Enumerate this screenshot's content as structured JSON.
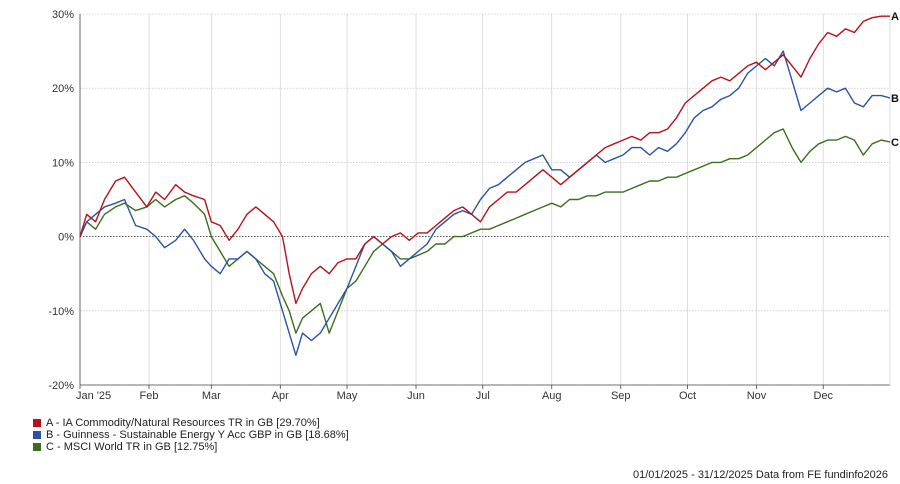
{
  "chart_data": {
    "type": "line",
    "x_tick_labels": [
      "Jan '25",
      "Feb",
      "Mar",
      "Apr",
      "May",
      "Jun",
      "Jul",
      "Aug",
      "Sep",
      "Oct",
      "Nov",
      "Dec"
    ],
    "x_tick_dates": [
      "2025-01-01",
      "2025-02-01",
      "2025-03-01",
      "2025-04-01",
      "2025-05-01",
      "2025-06-01",
      "2025-07-01",
      "2025-08-01",
      "2025-09-01",
      "2025-10-01",
      "2025-11-01",
      "2025-12-01"
    ],
    "x_range": [
      "2025-01-01",
      "2025-12-31"
    ],
    "y_tick_labels": [
      "30%",
      "20%",
      "10%",
      "0%",
      "-10%",
      "-20%"
    ],
    "y_ticks": [
      30,
      20,
      10,
      0,
      -10,
      -20
    ],
    "ylim": [
      -20,
      30
    ],
    "grid": true,
    "series": [
      {
        "name": "A - IA Commodity/Natural Resources TR in GB [29.70%]",
        "end_label": "A",
        "color": "#b5121b",
        "points": [
          [
            "2025-01-01",
            0
          ],
          [
            "2025-01-04",
            3
          ],
          [
            "2025-01-08",
            2
          ],
          [
            "2025-01-12",
            5
          ],
          [
            "2025-01-17",
            7.5
          ],
          [
            "2025-01-21",
            8
          ],
          [
            "2025-01-26",
            6
          ],
          [
            "2025-01-31",
            4
          ],
          [
            "2025-02-04",
            6
          ],
          [
            "2025-02-08",
            5
          ],
          [
            "2025-02-13",
            7
          ],
          [
            "2025-02-17",
            6
          ],
          [
            "2025-02-21",
            5.5
          ],
          [
            "2025-02-26",
            5
          ],
          [
            "2025-03-01",
            2
          ],
          [
            "2025-03-05",
            1.5
          ],
          [
            "2025-03-09",
            -0.5
          ],
          [
            "2025-03-13",
            1
          ],
          [
            "2025-03-17",
            3
          ],
          [
            "2025-03-21",
            4
          ],
          [
            "2025-03-25",
            3
          ],
          [
            "2025-03-29",
            2
          ],
          [
            "2025-04-02",
            0
          ],
          [
            "2025-04-05",
            -5
          ],
          [
            "2025-04-08",
            -9
          ],
          [
            "2025-04-11",
            -7
          ],
          [
            "2025-04-15",
            -5
          ],
          [
            "2025-04-19",
            -4
          ],
          [
            "2025-04-23",
            -5
          ],
          [
            "2025-04-27",
            -3.5
          ],
          [
            "2025-05-01",
            -3
          ],
          [
            "2025-05-05",
            -3
          ],
          [
            "2025-05-09",
            -1
          ],
          [
            "2025-05-13",
            0
          ],
          [
            "2025-05-17",
            -1
          ],
          [
            "2025-05-21",
            0
          ],
          [
            "2025-05-25",
            0.5
          ],
          [
            "2025-05-29",
            -0.5
          ],
          [
            "2025-06-02",
            0.5
          ],
          [
            "2025-06-06",
            0.5
          ],
          [
            "2025-06-10",
            1.5
          ],
          [
            "2025-06-14",
            2.5
          ],
          [
            "2025-06-18",
            3.5
          ],
          [
            "2025-06-22",
            4
          ],
          [
            "2025-06-26",
            3
          ],
          [
            "2025-06-30",
            2
          ],
          [
            "2025-07-04",
            4
          ],
          [
            "2025-07-08",
            5
          ],
          [
            "2025-07-12",
            6
          ],
          [
            "2025-07-16",
            6
          ],
          [
            "2025-07-20",
            7
          ],
          [
            "2025-07-24",
            8
          ],
          [
            "2025-07-28",
            9
          ],
          [
            "2025-08-01",
            8
          ],
          [
            "2025-08-05",
            7
          ],
          [
            "2025-08-09",
            8
          ],
          [
            "2025-08-13",
            9
          ],
          [
            "2025-08-17",
            10
          ],
          [
            "2025-08-21",
            11
          ],
          [
            "2025-08-25",
            12
          ],
          [
            "2025-08-29",
            12.5
          ],
          [
            "2025-09-02",
            13
          ],
          [
            "2025-09-06",
            13.5
          ],
          [
            "2025-09-10",
            13
          ],
          [
            "2025-09-14",
            14
          ],
          [
            "2025-09-18",
            14
          ],
          [
            "2025-09-22",
            14.5
          ],
          [
            "2025-09-26",
            16
          ],
          [
            "2025-09-30",
            18
          ],
          [
            "2025-10-04",
            19
          ],
          [
            "2025-10-08",
            20
          ],
          [
            "2025-10-12",
            21
          ],
          [
            "2025-10-16",
            21.5
          ],
          [
            "2025-10-20",
            21
          ],
          [
            "2025-10-24",
            22
          ],
          [
            "2025-10-28",
            23
          ],
          [
            "2025-11-01",
            23.5
          ],
          [
            "2025-11-05",
            22.5
          ],
          [
            "2025-11-09",
            23.5
          ],
          [
            "2025-11-13",
            24.5
          ],
          [
            "2025-11-17",
            23
          ],
          [
            "2025-11-21",
            21.5
          ],
          [
            "2025-11-25",
            24
          ],
          [
            "2025-11-29",
            26
          ],
          [
            "2025-12-03",
            27.5
          ],
          [
            "2025-12-07",
            27
          ],
          [
            "2025-12-11",
            28
          ],
          [
            "2025-12-15",
            27.5
          ],
          [
            "2025-12-19",
            29
          ],
          [
            "2025-12-23",
            29.5
          ],
          [
            "2025-12-27",
            29.7
          ],
          [
            "2025-12-31",
            29.7
          ]
        ]
      },
      {
        "name": "B - Guinness - Sustainable Energy Y Acc GBP in GB [18.68%]",
        "end_label": "B",
        "color": "#2a54a3",
        "points": [
          [
            "2025-01-01",
            0
          ],
          [
            "2025-01-04",
            2
          ],
          [
            "2025-01-08",
            3
          ],
          [
            "2025-01-12",
            4
          ],
          [
            "2025-01-17",
            4.5
          ],
          [
            "2025-01-21",
            5
          ],
          [
            "2025-01-26",
            1.5
          ],
          [
            "2025-01-31",
            1
          ],
          [
            "2025-02-04",
            0
          ],
          [
            "2025-02-08",
            -1.5
          ],
          [
            "2025-02-13",
            -0.5
          ],
          [
            "2025-02-17",
            1
          ],
          [
            "2025-02-21",
            -0.5
          ],
          [
            "2025-02-26",
            -3
          ],
          [
            "2025-03-01",
            -4
          ],
          [
            "2025-03-05",
            -5
          ],
          [
            "2025-03-09",
            -3
          ],
          [
            "2025-03-13",
            -3
          ],
          [
            "2025-03-17",
            -2
          ],
          [
            "2025-03-21",
            -3
          ],
          [
            "2025-03-25",
            -5
          ],
          [
            "2025-03-29",
            -6
          ],
          [
            "2025-04-02",
            -10
          ],
          [
            "2025-04-05",
            -13
          ],
          [
            "2025-04-08",
            -16
          ],
          [
            "2025-04-11",
            -13
          ],
          [
            "2025-04-15",
            -14
          ],
          [
            "2025-04-19",
            -13
          ],
          [
            "2025-04-23",
            -11
          ],
          [
            "2025-04-27",
            -9
          ],
          [
            "2025-05-01",
            -7
          ],
          [
            "2025-05-05",
            -4
          ],
          [
            "2025-05-09",
            -1
          ],
          [
            "2025-05-13",
            0
          ],
          [
            "2025-05-17",
            -1
          ],
          [
            "2025-05-21",
            -2
          ],
          [
            "2025-05-25",
            -4
          ],
          [
            "2025-05-29",
            -3
          ],
          [
            "2025-06-02",
            -2
          ],
          [
            "2025-06-06",
            -1
          ],
          [
            "2025-06-10",
            1
          ],
          [
            "2025-06-14",
            2
          ],
          [
            "2025-06-18",
            3
          ],
          [
            "2025-06-22",
            3.5
          ],
          [
            "2025-06-26",
            3
          ],
          [
            "2025-06-30",
            5
          ],
          [
            "2025-07-04",
            6.5
          ],
          [
            "2025-07-08",
            7
          ],
          [
            "2025-07-12",
            8
          ],
          [
            "2025-07-16",
            9
          ],
          [
            "2025-07-20",
            10
          ],
          [
            "2025-07-24",
            10.5
          ],
          [
            "2025-07-28",
            11
          ],
          [
            "2025-08-01",
            9
          ],
          [
            "2025-08-05",
            9
          ],
          [
            "2025-08-09",
            8
          ],
          [
            "2025-08-13",
            9
          ],
          [
            "2025-08-17",
            10
          ],
          [
            "2025-08-21",
            11
          ],
          [
            "2025-08-25",
            10
          ],
          [
            "2025-08-29",
            10.5
          ],
          [
            "2025-09-02",
            11
          ],
          [
            "2025-09-06",
            12
          ],
          [
            "2025-09-10",
            12
          ],
          [
            "2025-09-14",
            11
          ],
          [
            "2025-09-18",
            12
          ],
          [
            "2025-09-22",
            11.5
          ],
          [
            "2025-09-26",
            12.5
          ],
          [
            "2025-09-30",
            14
          ],
          [
            "2025-10-04",
            16
          ],
          [
            "2025-10-08",
            17
          ],
          [
            "2025-10-12",
            17.5
          ],
          [
            "2025-10-16",
            18.5
          ],
          [
            "2025-10-20",
            19
          ],
          [
            "2025-10-24",
            20
          ],
          [
            "2025-10-28",
            22
          ],
          [
            "2025-11-01",
            23
          ],
          [
            "2025-11-05",
            24
          ],
          [
            "2025-11-09",
            23
          ],
          [
            "2025-11-13",
            25
          ],
          [
            "2025-11-17",
            21
          ],
          [
            "2025-11-21",
            17
          ],
          [
            "2025-11-25",
            18
          ],
          [
            "2025-11-29",
            19
          ],
          [
            "2025-12-03",
            20
          ],
          [
            "2025-12-07",
            19.5
          ],
          [
            "2025-12-11",
            20
          ],
          [
            "2025-12-15",
            18
          ],
          [
            "2025-12-19",
            17.5
          ],
          [
            "2025-12-23",
            19
          ],
          [
            "2025-12-27",
            19
          ],
          [
            "2025-12-31",
            18.68
          ]
        ]
      },
      {
        "name": "C - MSCI World TR in GB [12.75%]",
        "end_label": "C",
        "color": "#3a6e1c",
        "points": [
          [
            "2025-01-01",
            0
          ],
          [
            "2025-01-04",
            2
          ],
          [
            "2025-01-08",
            1
          ],
          [
            "2025-01-12",
            3
          ],
          [
            "2025-01-17",
            4
          ],
          [
            "2025-01-21",
            4.5
          ],
          [
            "2025-01-26",
            3.5
          ],
          [
            "2025-01-31",
            4
          ],
          [
            "2025-02-04",
            5
          ],
          [
            "2025-02-08",
            4
          ],
          [
            "2025-02-13",
            5
          ],
          [
            "2025-02-17",
            5.5
          ],
          [
            "2025-02-21",
            4.5
          ],
          [
            "2025-02-26",
            3
          ],
          [
            "2025-03-01",
            0
          ],
          [
            "2025-03-05",
            -2
          ],
          [
            "2025-03-09",
            -4
          ],
          [
            "2025-03-13",
            -3
          ],
          [
            "2025-03-17",
            -2
          ],
          [
            "2025-03-21",
            -3
          ],
          [
            "2025-03-25",
            -4
          ],
          [
            "2025-03-29",
            -5
          ],
          [
            "2025-04-02",
            -8
          ],
          [
            "2025-04-05",
            -10
          ],
          [
            "2025-04-08",
            -13
          ],
          [
            "2025-04-11",
            -11
          ],
          [
            "2025-04-15",
            -10
          ],
          [
            "2025-04-19",
            -9
          ],
          [
            "2025-04-23",
            -13
          ],
          [
            "2025-04-27",
            -10
          ],
          [
            "2025-05-01",
            -7
          ],
          [
            "2025-05-05",
            -6
          ],
          [
            "2025-05-09",
            -4
          ],
          [
            "2025-05-13",
            -2
          ],
          [
            "2025-05-17",
            -1
          ],
          [
            "2025-05-21",
            -2
          ],
          [
            "2025-05-25",
            -3
          ],
          [
            "2025-05-29",
            -3
          ],
          [
            "2025-06-02",
            -2.5
          ],
          [
            "2025-06-06",
            -2
          ],
          [
            "2025-06-10",
            -1
          ],
          [
            "2025-06-14",
            -1
          ],
          [
            "2025-06-18",
            0
          ],
          [
            "2025-06-22",
            0
          ],
          [
            "2025-06-26",
            0.5
          ],
          [
            "2025-06-30",
            1
          ],
          [
            "2025-07-04",
            1
          ],
          [
            "2025-07-08",
            1.5
          ],
          [
            "2025-07-12",
            2
          ],
          [
            "2025-07-16",
            2.5
          ],
          [
            "2025-07-20",
            3
          ],
          [
            "2025-07-24",
            3.5
          ],
          [
            "2025-07-28",
            4
          ],
          [
            "2025-08-01",
            4.5
          ],
          [
            "2025-08-05",
            4
          ],
          [
            "2025-08-09",
            5
          ],
          [
            "2025-08-13",
            5
          ],
          [
            "2025-08-17",
            5.5
          ],
          [
            "2025-08-21",
            5.5
          ],
          [
            "2025-08-25",
            6
          ],
          [
            "2025-08-29",
            6
          ],
          [
            "2025-09-02",
            6
          ],
          [
            "2025-09-06",
            6.5
          ],
          [
            "2025-09-10",
            7
          ],
          [
            "2025-09-14",
            7.5
          ],
          [
            "2025-09-18",
            7.5
          ],
          [
            "2025-09-22",
            8
          ],
          [
            "2025-09-26",
            8
          ],
          [
            "2025-09-30",
            8.5
          ],
          [
            "2025-10-04",
            9
          ],
          [
            "2025-10-08",
            9.5
          ],
          [
            "2025-10-12",
            10
          ],
          [
            "2025-10-16",
            10
          ],
          [
            "2025-10-20",
            10.5
          ],
          [
            "2025-10-24",
            10.5
          ],
          [
            "2025-10-28",
            11
          ],
          [
            "2025-11-01",
            12
          ],
          [
            "2025-11-05",
            13
          ],
          [
            "2025-11-09",
            14
          ],
          [
            "2025-11-13",
            14.5
          ],
          [
            "2025-11-17",
            12
          ],
          [
            "2025-11-21",
            10
          ],
          [
            "2025-11-25",
            11.5
          ],
          [
            "2025-11-29",
            12.5
          ],
          [
            "2025-12-03",
            13
          ],
          [
            "2025-12-07",
            13
          ],
          [
            "2025-12-11",
            13.5
          ],
          [
            "2025-12-15",
            13
          ],
          [
            "2025-12-19",
            11
          ],
          [
            "2025-12-23",
            12.5
          ],
          [
            "2025-12-27",
            13
          ],
          [
            "2025-12-31",
            12.75
          ]
        ]
      }
    ],
    "legend_position": "bottom-left"
  },
  "footer": {
    "text": "01/01/2025 - 31/12/2025 Data from FE fundinfo2026"
  }
}
